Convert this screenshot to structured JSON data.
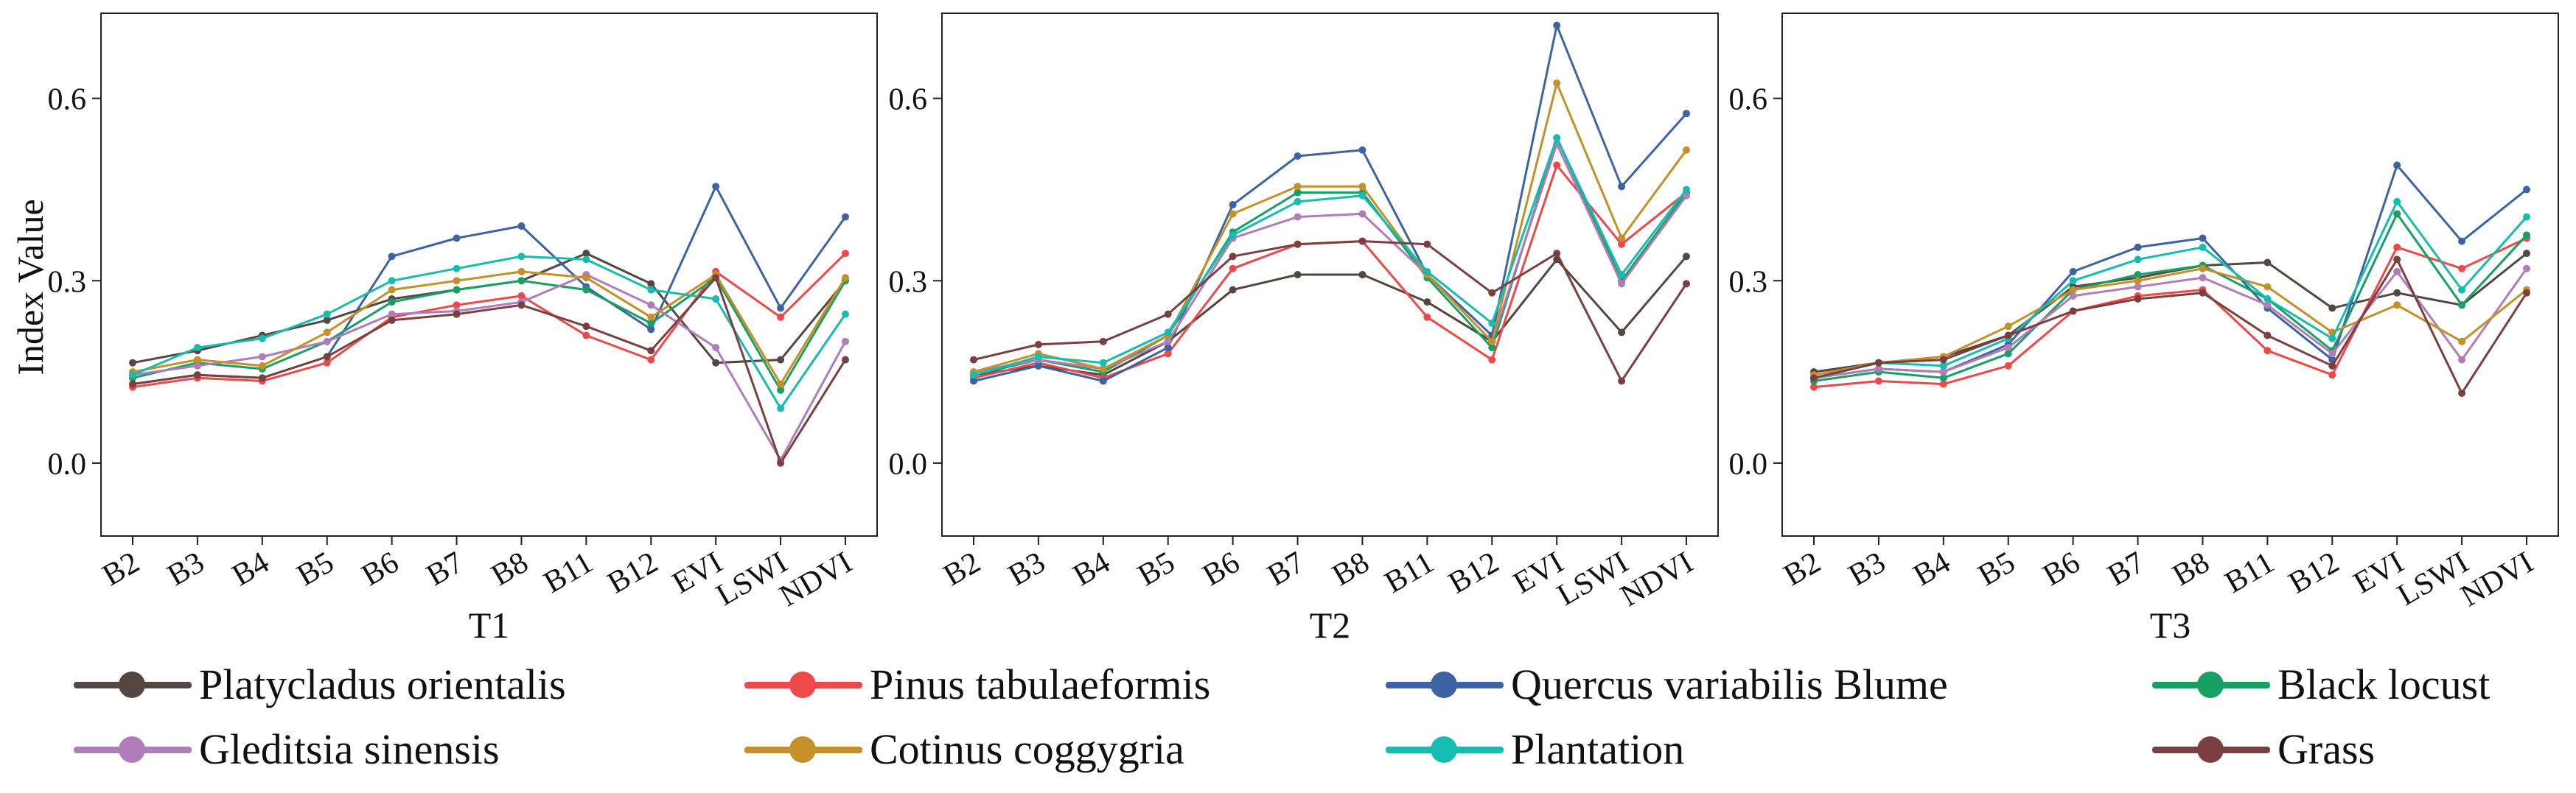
{
  "chart_data": {
    "type": "line",
    "ylabel": "Index Value",
    "ylim": [
      -0.12,
      0.74
    ],
    "yticks": [
      0.0,
      0.3,
      0.6
    ],
    "ytick_labels": [
      "0.0",
      "0.3",
      "0.6"
    ],
    "categories": [
      "B2",
      "B3",
      "B4",
      "B5",
      "B6",
      "B7",
      "B8",
      "B11",
      "B12",
      "EVI",
      "LSWI",
      "NDVI"
    ],
    "legend": [
      {
        "name": "Platycladus orientalis",
        "color": "#544640"
      },
      {
        "name": "Pinus tabulaeformis",
        "color": "#ee4848"
      },
      {
        "name": "Quercus variabilis Blume",
        "color": "#3c64a4"
      },
      {
        "name": "Black locust",
        "color": "#16a064"
      },
      {
        "name": "Gleditsia sinensis",
        "color": "#b07cba"
      },
      {
        "name": "Cotinus coggygria",
        "color": "#c69028"
      },
      {
        "name": "Plantation",
        "color": "#16bcb0"
      },
      {
        "name": "Grass",
        "color": "#7a4040"
      }
    ],
    "panels": [
      {
        "xlabel": "T1",
        "series": [
          {
            "name": "Platycladus orientalis",
            "values": [
              0.165,
              0.185,
              0.21,
              0.235,
              0.27,
              0.285,
              0.3,
              0.345,
              0.295,
              0.165,
              0.17,
              0.3
            ]
          },
          {
            "name": "Pinus tabulaeformis",
            "values": [
              0.125,
              0.14,
              0.135,
              0.165,
              0.24,
              0.26,
              0.275,
              0.21,
              0.17,
              0.315,
              0.24,
              0.345
            ]
          },
          {
            "name": "Quercus variabilis Blume",
            "values": [
              0.13,
              0.145,
              0.14,
              0.175,
              0.34,
              0.37,
              0.39,
              0.29,
              0.22,
              0.455,
              0.255,
              0.405
            ]
          },
          {
            "name": "Black locust",
            "values": [
              0.14,
              0.165,
              0.155,
              0.2,
              0.265,
              0.285,
              0.3,
              0.285,
              0.23,
              0.305,
              0.12,
              0.3
            ]
          },
          {
            "name": "Gleditsia sinensis",
            "values": [
              0.145,
              0.16,
              0.175,
              0.2,
              0.245,
              0.25,
              0.265,
              0.31,
              0.26,
              0.19,
              0.005,
              0.2
            ]
          },
          {
            "name": "Cotinus coggygria",
            "values": [
              0.15,
              0.17,
              0.16,
              0.215,
              0.285,
              0.3,
              0.315,
              0.305,
              0.24,
              0.31,
              0.13,
              0.305
            ]
          },
          {
            "name": "Plantation",
            "values": [
              0.145,
              0.19,
              0.205,
              0.245,
              0.3,
              0.32,
              0.34,
              0.335,
              0.285,
              0.27,
              0.09,
              0.245
            ]
          },
          {
            "name": "Grass",
            "values": [
              0.13,
              0.145,
              0.14,
              0.175,
              0.235,
              0.245,
              0.26,
              0.225,
              0.185,
              0.305,
              0.0,
              0.17
            ]
          }
        ]
      },
      {
        "xlabel": "T2",
        "series": [
          {
            "name": "Platycladus orientalis",
            "values": [
              0.145,
              0.16,
              0.145,
              0.2,
              0.285,
              0.31,
              0.31,
              0.265,
              0.2,
              0.335,
              0.215,
              0.34
            ]
          },
          {
            "name": "Pinus tabulaeformis",
            "values": [
              0.14,
              0.165,
              0.14,
              0.18,
              0.32,
              0.36,
              0.365,
              0.24,
              0.17,
              0.49,
              0.36,
              0.445
            ]
          },
          {
            "name": "Quercus variabilis Blume",
            "values": [
              0.135,
              0.16,
              0.135,
              0.19,
              0.425,
              0.505,
              0.515,
              0.31,
              0.21,
              0.72,
              0.455,
              0.575
            ]
          },
          {
            "name": "Black locust",
            "values": [
              0.145,
              0.17,
              0.15,
              0.21,
              0.38,
              0.445,
              0.445,
              0.305,
              0.19,
              0.535,
              0.3,
              0.445
            ]
          },
          {
            "name": "Gleditsia sinensis",
            "values": [
              0.15,
              0.17,
              0.155,
              0.2,
              0.37,
              0.405,
              0.41,
              0.31,
              0.2,
              0.525,
              0.295,
              0.44
            ]
          },
          {
            "name": "Cotinus coggygria",
            "values": [
              0.15,
              0.18,
              0.155,
              0.21,
              0.41,
              0.455,
              0.455,
              0.31,
              0.2,
              0.625,
              0.37,
              0.515
            ]
          },
          {
            "name": "Plantation",
            "values": [
              0.145,
              0.175,
              0.165,
              0.215,
              0.375,
              0.43,
              0.44,
              0.315,
              0.23,
              0.535,
              0.31,
              0.45
            ]
          },
          {
            "name": "Grass",
            "values": [
              0.17,
              0.195,
              0.2,
              0.245,
              0.34,
              0.36,
              0.365,
              0.36,
              0.28,
              0.345,
              0.135,
              0.295
            ]
          }
        ]
      },
      {
        "xlabel": "T3",
        "series": [
          {
            "name": "Platycladus orientalis",
            "values": [
              0.15,
              0.165,
              0.175,
              0.21,
              0.29,
              0.305,
              0.325,
              0.33,
              0.255,
              0.28,
              0.26,
              0.345
            ]
          },
          {
            "name": "Pinus tabulaeformis",
            "values": [
              0.125,
              0.135,
              0.13,
              0.16,
              0.25,
              0.275,
              0.285,
              0.185,
              0.145,
              0.355,
              0.32,
              0.37
            ]
          },
          {
            "name": "Quercus variabilis Blume",
            "values": [
              0.14,
              0.155,
              0.15,
              0.195,
              0.315,
              0.355,
              0.37,
              0.255,
              0.17,
              0.49,
              0.365,
              0.45
            ]
          },
          {
            "name": "Black locust",
            "values": [
              0.135,
              0.15,
              0.14,
              0.18,
              0.285,
              0.31,
              0.325,
              0.27,
              0.185,
              0.41,
              0.26,
              0.375
            ]
          },
          {
            "name": "Gleditsia sinensis",
            "values": [
              0.14,
              0.155,
              0.15,
              0.19,
              0.275,
              0.29,
              0.305,
              0.26,
              0.18,
              0.315,
              0.17,
              0.32
            ]
          },
          {
            "name": "Cotinus coggygria",
            "values": [
              0.145,
              0.165,
              0.175,
              0.225,
              0.285,
              0.3,
              0.32,
              0.29,
              0.215,
              0.26,
              0.2,
              0.285
            ]
          },
          {
            "name": "Plantation",
            "values": [
              0.14,
              0.165,
              0.16,
              0.205,
              0.3,
              0.335,
              0.355,
              0.27,
              0.205,
              0.43,
              0.285,
              0.405
            ]
          },
          {
            "name": "Grass",
            "values": [
              0.14,
              0.165,
              0.17,
              0.21,
              0.25,
              0.27,
              0.28,
              0.21,
              0.16,
              0.335,
              0.115,
              0.28
            ]
          }
        ]
      }
    ]
  }
}
